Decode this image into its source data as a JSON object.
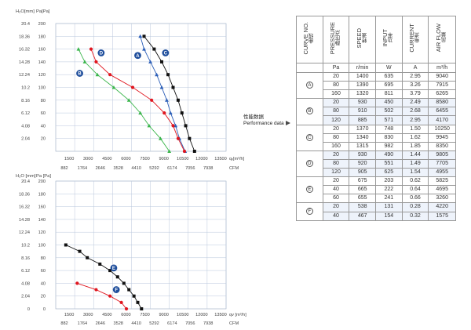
{
  "performance_label": {
    "cn": "性能数据",
    "en": "Performance data"
  },
  "table": {
    "headers": [
      {
        "en": "CURVE NO.",
        "cn": "曲线"
      },
      {
        "en": "PRESSURE",
        "cn": "静压点"
      },
      {
        "en": "SPEED",
        "cn": "转速"
      },
      {
        "en": "INPUT",
        "cn": "功率"
      },
      {
        "en": "CURRENT",
        "cn": "电流"
      },
      {
        "en": "AIR FLOW",
        "cn": "风量"
      }
    ],
    "units": [
      "",
      "Pa",
      "r/min",
      "W",
      "A",
      "m³/h"
    ],
    "groups": [
      {
        "curve": "A",
        "rows": [
          [
            "20",
            "1400",
            "635",
            "2.95",
            "9040"
          ],
          [
            "80",
            "1390",
            "695",
            "3.26",
            "7915"
          ],
          [
            "160",
            "1320",
            "811",
            "3.79",
            "6265"
          ]
        ]
      },
      {
        "curve": "B",
        "rows": [
          [
            "20",
            "930",
            "450",
            "2.49",
            "8580"
          ],
          [
            "80",
            "910",
            "502",
            "2.68",
            "6455"
          ],
          [
            "120",
            "885",
            "571",
            "2.95",
            "4170"
          ]
        ]
      },
      {
        "curve": "C",
        "rows": [
          [
            "20",
            "1370",
            "748",
            "1.50",
            "10250"
          ],
          [
            "80",
            "1340",
            "830",
            "1.62",
            "9945"
          ],
          [
            "160",
            "1315",
            "982",
            "1.85",
            "8350"
          ]
        ]
      },
      {
        "curve": "D",
        "rows": [
          [
            "20",
            "930",
            "490",
            "1.44",
            "9805"
          ],
          [
            "80",
            "920",
            "551",
            "1.49",
            "7705"
          ],
          [
            "120",
            "905",
            "625",
            "1.54",
            "4955"
          ]
        ]
      },
      {
        "curve": "E",
        "rows": [
          [
            "20",
            "675",
            "203",
            "0.62",
            "5825"
          ],
          [
            "40",
            "665",
            "222",
            "0.64",
            "4695"
          ],
          [
            "60",
            "655",
            "241",
            "0.66",
            "3260"
          ]
        ]
      },
      {
        "curve": "F",
        "rows": [
          [
            "20",
            "538",
            "131",
            "0.28",
            "4220"
          ],
          [
            "40",
            "467",
            "154",
            "0.32",
            "1575"
          ]
        ]
      }
    ]
  },
  "chart_data": [
    {
      "type": "line",
      "ylabel_left": "H₂O[mm]",
      "ylabel_right": "Pa[Pa]",
      "xlabel": "qᵥ[m³/h]",
      "xlabel2": "CFM",
      "grid": true,
      "xlim": [
        0,
        13500
      ],
      "ylim": [
        0,
        200
      ],
      "x_ticks": [
        "1500",
        "3000",
        "4500",
        "6000",
        "7500",
        "9000",
        "10500",
        "12000",
        "13500"
      ],
      "cfm_ticks": [
        "882",
        "1764",
        "2646",
        "3528",
        "4410",
        "5292",
        "6174",
        "7056",
        "7938"
      ],
      "pa_ticks": [
        "20",
        "40",
        "60",
        "80",
        "100",
        "120",
        "140",
        "160",
        "180",
        "200"
      ],
      "mm_ticks": [
        "2.04",
        "4.08",
        "6.12",
        "8.16",
        "10.2",
        "12.24",
        "14.28",
        "16.32",
        "18.36",
        "20.4"
      ],
      "series": [
        {
          "name": "A",
          "color": "#2c5fb8",
          "marker": "triangle",
          "points": [
            [
              6700,
              180
            ],
            [
              7000,
              160
            ],
            [
              7500,
              140
            ],
            [
              8000,
              120
            ],
            [
              8400,
              100
            ],
            [
              8800,
              80
            ],
            [
              9100,
              60
            ],
            [
              9500,
              40
            ],
            [
              9800,
              20
            ],
            [
              10250,
              0
            ]
          ]
        },
        {
          "name": "B",
          "color": "#39b54a",
          "marker": "triangle",
          "points": [
            [
              1800,
              160
            ],
            [
              2300,
              140
            ],
            [
              3300,
              120
            ],
            [
              4600,
              100
            ],
            [
              5800,
              80
            ],
            [
              6700,
              60
            ],
            [
              7400,
              40
            ],
            [
              8300,
              20
            ],
            [
              9000,
              0
            ]
          ]
        },
        {
          "name": "C",
          "color": "#111111",
          "marker": "square",
          "points": [
            [
              7000,
              180
            ],
            [
              7800,
              160
            ],
            [
              8400,
              140
            ],
            [
              8900,
              120
            ],
            [
              9300,
              100
            ],
            [
              9700,
              80
            ],
            [
              10000,
              60
            ],
            [
              10300,
              40
            ],
            [
              10600,
              20
            ],
            [
              11000,
              0
            ]
          ]
        },
        {
          "name": "D",
          "color": "#e0161f",
          "marker": "circle",
          "points": [
            [
              2800,
              160
            ],
            [
              3200,
              140
            ],
            [
              4300,
              120
            ],
            [
              6100,
              100
            ],
            [
              7600,
              80
            ],
            [
              8600,
              60
            ],
            [
              9300,
              40
            ],
            [
              9700,
              20
            ],
            [
              10200,
              0
            ]
          ]
        }
      ],
      "labels": [
        {
          "series": "A",
          "x": 6500,
          "y": 150
        },
        {
          "series": "C",
          "x": 8700,
          "y": 154
        },
        {
          "series": "D",
          "x": 3600,
          "y": 154
        },
        {
          "series": "B",
          "x": 1900,
          "y": 122
        }
      ]
    },
    {
      "type": "line",
      "ylabel_left": "H₂O [mm]",
      "ylabel_right": "Pa [Pa]",
      "xlabel": "qv [m³/h]",
      "xlabel2": "CFM",
      "grid": true,
      "xlim": [
        0,
        13500
      ],
      "ylim": [
        0,
        200
      ],
      "x_ticks": [
        "1500",
        "3000",
        "4500",
        "6000",
        "7500",
        "9000",
        "10500",
        "12000",
        "13500"
      ],
      "cfm_ticks": [
        "882",
        "1764",
        "2646",
        "3528",
        "4410",
        "5292",
        "6174",
        "7056",
        "7938"
      ],
      "pa_ticks": [
        "0",
        "20",
        "40",
        "60",
        "80",
        "100",
        "120",
        "140",
        "160",
        "180",
        "200"
      ],
      "mm_ticks": [
        "0",
        "2.04",
        "4.08",
        "6.12",
        "8.16",
        "10.2",
        "12.24",
        "14.28",
        "16.32",
        "18.36",
        "20.4"
      ],
      "series": [
        {
          "name": "E",
          "color": "#111111",
          "marker": "square",
          "points": [
            [
              800,
              100
            ],
            [
              1900,
              90
            ],
            [
              2500,
              80
            ],
            [
              3500,
              70
            ],
            [
              4300,
              60
            ],
            [
              4900,
              50
            ],
            [
              5400,
              40
            ],
            [
              5800,
              30
            ],
            [
              6200,
              20
            ],
            [
              6500,
              10
            ],
            [
              6800,
              0
            ]
          ]
        },
        {
          "name": "F",
          "color": "#e0161f",
          "marker": "circle",
          "points": [
            [
              1700,
              40
            ],
            [
              3200,
              30
            ],
            [
              4300,
              20
            ],
            [
              5200,
              10
            ],
            [
              5600,
              0
            ]
          ]
        }
      ],
      "labels": [
        {
          "series": "E",
          "x": 4600,
          "y": 64
        },
        {
          "series": "F",
          "x": 4800,
          "y": 30
        }
      ]
    }
  ]
}
